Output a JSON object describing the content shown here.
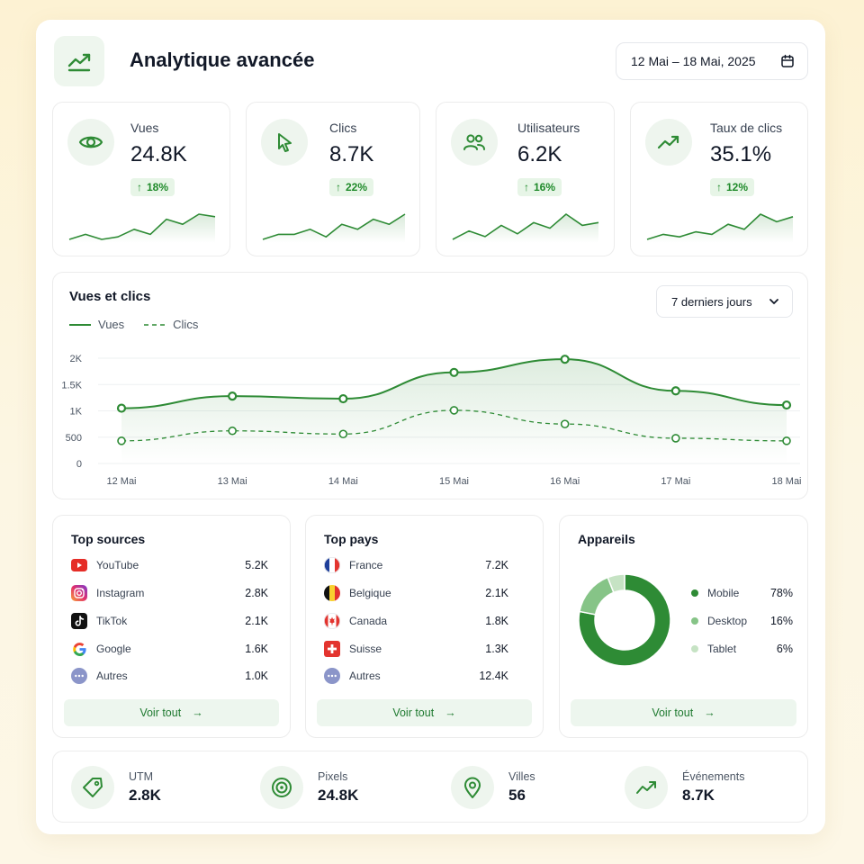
{
  "header": {
    "title": "Analytique avancée",
    "date_range": "12 Mai – 18 Mai, 2025",
    "icon": "trend-up-icon"
  },
  "kpis": [
    {
      "label": "Vues",
      "value": "24.8K",
      "delta": "18%",
      "icon": "eye-icon",
      "trend": [
        3,
        4,
        3,
        3.5,
        5,
        4,
        7,
        6,
        8,
        7.5
      ]
    },
    {
      "label": "Clics",
      "value": "8.7K",
      "delta": "22%",
      "icon": "cursor-icon",
      "trend": [
        2,
        3,
        3,
        4,
        2.5,
        5,
        4,
        6,
        5,
        7
      ]
    },
    {
      "label": "Utilisateurs",
      "value": "6.2K",
      "delta": "16%",
      "icon": "users-icon",
      "trend": [
        3,
        4.5,
        3.5,
        5.5,
        4,
        6,
        5,
        7.5,
        5.5,
        6
      ]
    },
    {
      "label": "Taux de clics",
      "value": "35.1%",
      "delta": "12%",
      "icon": "trend-up-icon",
      "trend": [
        2,
        3,
        2.5,
        3.5,
        3,
        5,
        4,
        7,
        5.5,
        6.5
      ]
    }
  ],
  "main_chart": {
    "title": "Vues et clics",
    "period": "7 derniers jours",
    "legend": [
      "Vues",
      "Clics"
    ]
  },
  "chart_data": {
    "type": "line",
    "categories": [
      "12 Mai",
      "13 Mai",
      "14 Mai",
      "15 Mai",
      "16 Mai",
      "17 Mai",
      "18 Mai"
    ],
    "series": [
      {
        "name": "Vues",
        "values": [
          1050,
          1280,
          1230,
          1730,
          1980,
          1380,
          1110
        ]
      },
      {
        "name": "Clics",
        "values": [
          430,
          620,
          560,
          1010,
          750,
          480,
          430
        ]
      }
    ],
    "yticks": [
      "0",
      "500",
      "1K",
      "1.5K",
      "2K"
    ],
    "ylim": [
      0,
      2000
    ],
    "grid": true,
    "legend_position": "top-left"
  },
  "sources": {
    "title": "Top sources",
    "items": [
      {
        "name": "YouTube",
        "value": "5.2K",
        "icon": "youtube-icon"
      },
      {
        "name": "Instagram",
        "value": "2.8K",
        "icon": "instagram-icon"
      },
      {
        "name": "TikTok",
        "value": "2.1K",
        "icon": "tiktok-icon"
      },
      {
        "name": "Google",
        "value": "1.6K",
        "icon": "google-icon"
      },
      {
        "name": "Autres",
        "value": "1.0K",
        "icon": "more-icon"
      }
    ],
    "see_all": "Voir tout"
  },
  "countries": {
    "title": "Top pays",
    "items": [
      {
        "name": "France",
        "value": "7.2K",
        "icon": "flag-france-icon"
      },
      {
        "name": "Belgique",
        "value": "2.1K",
        "icon": "flag-belgium-icon"
      },
      {
        "name": "Canada",
        "value": "1.8K",
        "icon": "flag-canada-icon"
      },
      {
        "name": "Suisse",
        "value": "1.3K",
        "icon": "flag-switzerland-icon"
      },
      {
        "name": "Autres",
        "value": "12.4K",
        "icon": "more-icon"
      }
    ],
    "see_all": "Voir tout"
  },
  "devices": {
    "title": "Appareils",
    "items": [
      {
        "name": "Mobile",
        "value": "78%",
        "share": 78,
        "color": "#2e8b35"
      },
      {
        "name": "Desktop",
        "value": "16%",
        "share": 16,
        "color": "#86c487"
      },
      {
        "name": "Tablet",
        "value": "6%",
        "share": 6,
        "color": "#c6e3c4"
      }
    ],
    "see_all": "Voir tout"
  },
  "bottom_stats": [
    {
      "label": "UTM",
      "value": "2.8K",
      "icon": "tag-icon"
    },
    {
      "label": "Pixels",
      "value": "24.8K",
      "icon": "target-icon"
    },
    {
      "label": "Villes",
      "value": "56",
      "icon": "map-pin-icon"
    },
    {
      "label": "Événements",
      "value": "8.7K",
      "icon": "trend-up-icon"
    }
  ],
  "colors": {
    "accent": "#2e8b35",
    "accent_light": "#eef5ee"
  }
}
